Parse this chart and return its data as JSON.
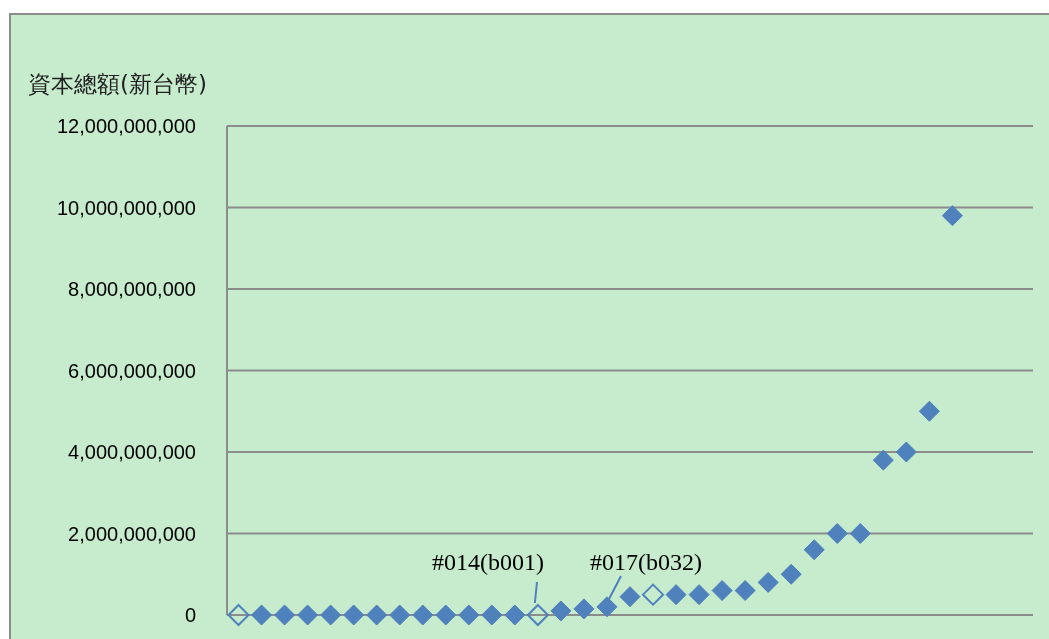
{
  "chart_data": {
    "type": "scatter",
    "ylabel": "資本總額(新台幣)",
    "marker": "diamond",
    "tick_labels": "y",
    "categories": [
      null,
      null,
      null,
      null,
      null,
      null,
      null,
      null,
      null,
      null,
      null,
      null,
      null,
      null,
      null,
      null,
      null,
      null,
      null,
      null,
      null,
      null,
      null,
      null,
      null,
      null,
      null,
      null,
      null,
      null,
      null,
      null,
      null,
      null,
      null
    ],
    "series": [
      {
        "color": "#4f81bd",
        "values": [
          null,
          0,
          0,
          0,
          0,
          0,
          0,
          0,
          0,
          0,
          0,
          0,
          0,
          null,
          100000000,
          150000000,
          200000000,
          450000000,
          null,
          500000000,
          500000000,
          600000000,
          600000000,
          800000000,
          1000000000,
          1600000000,
          2000000000,
          2000000000,
          3800000000,
          4000000000,
          5000000000,
          9800000000,
          null,
          null,
          null
        ]
      },
      {
        "color": "#4f81bd",
        "marker": "diamond-open",
        "values": [
          0,
          null,
          null,
          null,
          null,
          null,
          null,
          null,
          null,
          null,
          null,
          null,
          null,
          0,
          null,
          null,
          null,
          null,
          500000000,
          null,
          null,
          null,
          null,
          null,
          null,
          null,
          null,
          null,
          null,
          null,
          null,
          null,
          null,
          null,
          null
        ]
      }
    ],
    "ylim": [
      0,
      12000000000
    ],
    "yticks": [
      {
        "value": 0,
        "label": "0"
      },
      {
        "value": 2000000000,
        "label": "2,000,000,000"
      },
      {
        "value": 4000000000,
        "label": "4,000,000,000"
      },
      {
        "value": 6000000000,
        "label": "6,000,000,000"
      },
      {
        "value": 8000000000,
        "label": "8,000,000,000"
      },
      {
        "value": 10000000000,
        "label": "10,000,000,000"
      },
      {
        "value": 12000000000,
        "label": "12,000,000,000"
      }
    ],
    "grid": "y",
    "annotations": [
      "#014(b001)",
      "#017(b032)"
    ]
  }
}
